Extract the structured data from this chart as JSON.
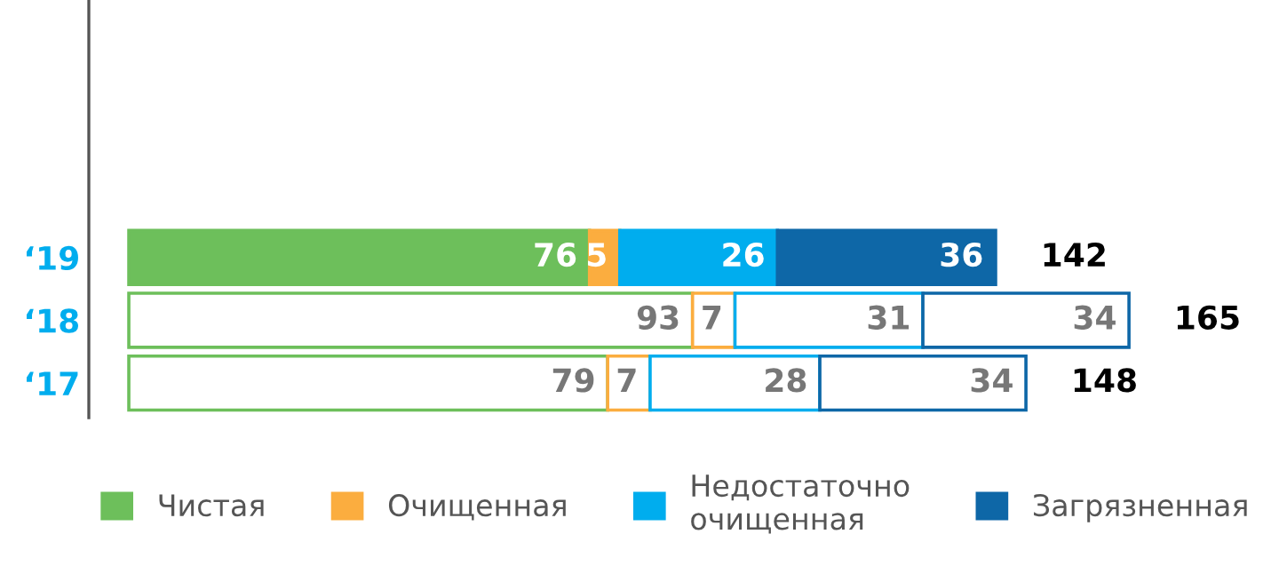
{
  "chart_data": {
    "type": "bar",
    "orientation": "horizontal",
    "stacked": true,
    "categories": [
      "‘19",
      "‘18",
      "‘17"
    ],
    "series": [
      {
        "name": "Чистая",
        "color": "#6dbf5b",
        "values": [
          76,
          93,
          79
        ]
      },
      {
        "name": "Очищенная",
        "color": "#fbad3f",
        "values": [
          5,
          7,
          7
        ]
      },
      {
        "name": "Недостаточно\nочищенная",
        "color": "#00adee",
        "values": [
          26,
          31,
          28
        ]
      },
      {
        "name": "Загрязненная",
        "color": "#0e67a7",
        "values": [
          36,
          34,
          34
        ]
      }
    ],
    "data_labels": true,
    "totals": [
      "142",
      "165",
      "148"
    ],
    "legend": "bottom",
    "grid": false
  }
}
